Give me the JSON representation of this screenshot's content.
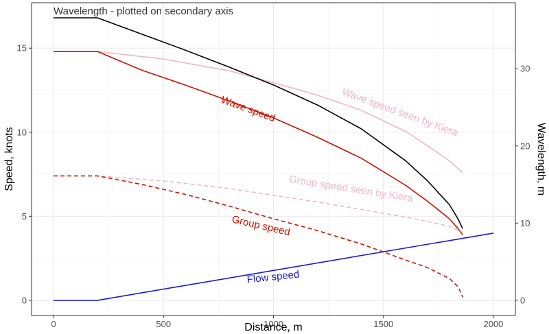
{
  "chart_data": {
    "type": "line",
    "xlabel": "Distance, m",
    "ylabel": "Speed, knots",
    "y2label": "Wavelength, m",
    "xlim": [
      -100,
      2100
    ],
    "ylim": [
      -0.9,
      17.7
    ],
    "y2lim": [
      -1.96,
      38.55
    ],
    "x_ticks": [
      0,
      500,
      1000,
      1500,
      2000
    ],
    "y_ticks": [
      0,
      5,
      10,
      15
    ],
    "y2_ticks": [
      0,
      10,
      20,
      30
    ],
    "grid": true,
    "legend": "none",
    "series": [
      {
        "name": "Wave speed seen by Kiera",
        "color": "#efb7c8",
        "dash": "solid",
        "axis": "left",
        "x": [
          0,
          200,
          500,
          800,
          1000,
          1200,
          1400,
          1600,
          1700,
          1800,
          1860
        ],
        "y": [
          14.8,
          14.8,
          14.35,
          13.65,
          12.95,
          12.2,
          11.3,
          10.05,
          9.2,
          8.3,
          7.6
        ]
      },
      {
        "name": "Wave speed",
        "color": "#cc1100",
        "dash": "solid",
        "axis": "left",
        "x": [
          0,
          200,
          400,
          600,
          800,
          1000,
          1200,
          1400,
          1600,
          1700,
          1800,
          1840,
          1860
        ],
        "y": [
          14.8,
          14.8,
          13.7,
          12.8,
          11.85,
          10.85,
          9.7,
          8.45,
          6.85,
          5.9,
          4.85,
          4.25,
          3.9
        ]
      },
      {
        "name": "Group speed seen by Kiera",
        "color": "#efb7c8",
        "dash": "dash",
        "axis": "left",
        "x": [
          0,
          200,
          500,
          800,
          1000,
          1200,
          1400,
          1600,
          1700,
          1800,
          1860
        ],
        "y": [
          7.4,
          7.4,
          7.1,
          6.65,
          6.25,
          5.85,
          5.4,
          4.95,
          4.7,
          4.4,
          4.05
        ]
      },
      {
        "name": "Group speed",
        "color": "#cc1100",
        "dash": "dash",
        "axis": "left",
        "x": [
          0,
          200,
          400,
          600,
          800,
          1000,
          1200,
          1400,
          1600,
          1700,
          1800,
          1840,
          1860
        ],
        "y": [
          7.4,
          7.4,
          6.9,
          6.3,
          5.6,
          4.85,
          4.15,
          3.35,
          2.4,
          1.95,
          1.3,
          0.8,
          0.2
        ]
      },
      {
        "name": "Flow speed",
        "color": "#1a1acc",
        "dash": "solid",
        "axis": "left",
        "x": [
          0,
          200,
          2000
        ],
        "y": [
          0,
          0,
          4.0
        ]
      },
      {
        "name": "Wavelength - plotted on secondary axis",
        "color": "#000000",
        "dash": "solid",
        "axis": "right",
        "x": [
          0,
          200,
          400,
          600,
          800,
          1000,
          1200,
          1400,
          1600,
          1700,
          1800,
          1840,
          1860
        ],
        "y": [
          36.6,
          36.6,
          34.5,
          32.4,
          30.2,
          27.9,
          25.3,
          22.2,
          18.1,
          15.5,
          12.4,
          10.5,
          9.3
        ]
      }
    ],
    "annotations": [
      {
        "text": "Wavelength - plotted on secondary axis",
        "color": "#333333",
        "x": 0,
        "y": 17.0,
        "rotate": 0,
        "anchor": "start"
      },
      {
        "text": "Wave speed seen by Kiera",
        "color": "#efb7c8",
        "x": 1570,
        "y": 11.0,
        "rotate": 20,
        "anchor": "middle"
      },
      {
        "text": "Wave speed",
        "color": "#cc1100",
        "x": 880,
        "y": 11.2,
        "rotate": 20,
        "anchor": "middle"
      },
      {
        "text": "Group speed seen by Kiera",
        "color": "#efb7c8",
        "x": 1350,
        "y": 6.45,
        "rotate": 9,
        "anchor": "middle"
      },
      {
        "text": "Group speed",
        "color": "#cc1100",
        "x": 940,
        "y": 4.25,
        "rotate": 13,
        "anchor": "middle"
      },
      {
        "text": "Flow speed",
        "color": "#1a1acc",
        "x": 1000,
        "y": 1.2,
        "rotate": -6,
        "anchor": "middle"
      }
    ]
  }
}
